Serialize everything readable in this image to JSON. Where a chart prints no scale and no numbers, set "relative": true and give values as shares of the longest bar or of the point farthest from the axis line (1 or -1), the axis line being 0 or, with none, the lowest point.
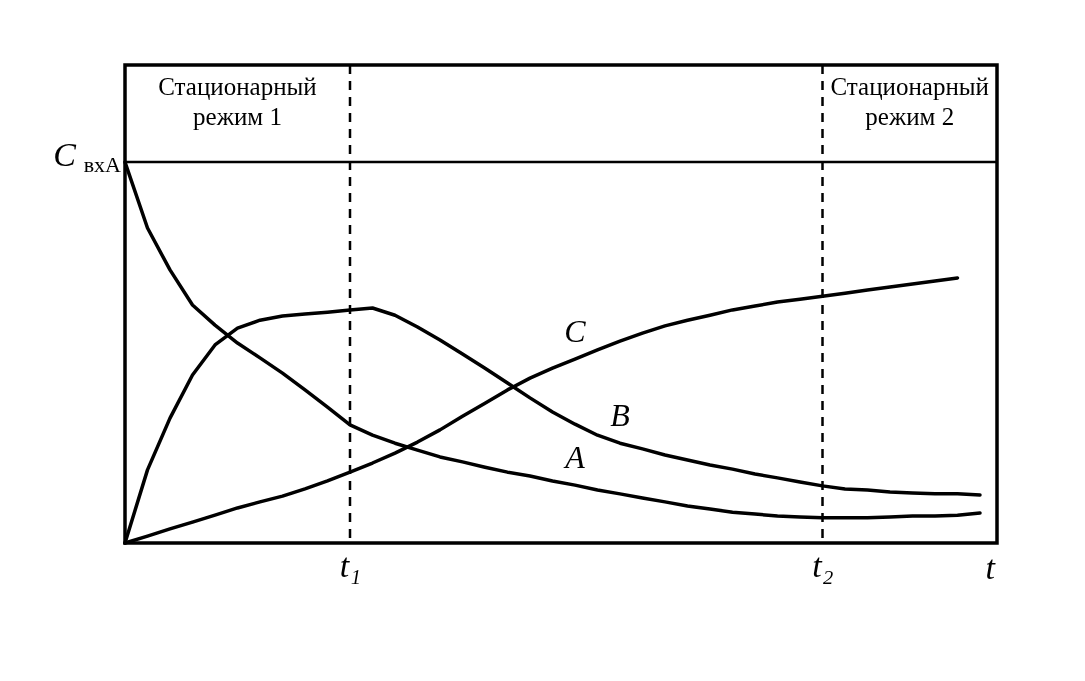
{
  "chart_data": {
    "type": "line",
    "relative": true,
    "xlabel": "t",
    "line_style": "solid",
    "categories": [
      null,
      null,
      null,
      null,
      null,
      null,
      null,
      null,
      null,
      null,
      "t₁",
      null,
      null,
      null,
      null,
      null,
      null,
      null,
      null,
      null,
      null,
      null,
      null,
      null,
      null,
      null,
      null,
      null,
      null,
      null,
      null,
      "t₂",
      null,
      null,
      null,
      null,
      null,
      null,
      null
    ],
    "series": [
      {
        "name": "A",
        "color": "#000000",
        "values": [
          1,
          0.827,
          0.717,
          0.625,
          0.572,
          0.525,
          0.486,
          0.446,
          0.402,
          0.357,
          0.31,
          0.283,
          0.262,
          0.244,
          0.226,
          0.213,
          0.199,
          0.186,
          0.176,
          0.163,
          0.152,
          0.139,
          0.129,
          0.118,
          0.108,
          0.097,
          0.089,
          0.081,
          0.076,
          0.071,
          0.068,
          0.066,
          0.066,
          0.066,
          0.068,
          0.071,
          0.071,
          0.073,
          0.079
        ]
      },
      {
        "name": "B",
        "color": "#000000",
        "values": [
          0,
          0.192,
          0.328,
          0.441,
          0.52,
          0.564,
          0.585,
          0.596,
          0.601,
          0.606,
          0.612,
          0.617,
          0.598,
          0.567,
          0.533,
          0.496,
          0.459,
          0.42,
          0.381,
          0.344,
          0.312,
          0.283,
          0.262,
          0.247,
          0.231,
          0.218,
          0.205,
          0.194,
          0.181,
          0.171,
          0.16,
          0.15,
          0.142,
          0.139,
          0.134,
          0.131,
          0.129,
          0.129,
          0.126
        ]
      },
      {
        "name": "C",
        "color": "#000000",
        "values": [
          0,
          0.018,
          0.037,
          0.055,
          0.073,
          0.092,
          0.108,
          0.123,
          0.142,
          0.163,
          0.186,
          0.21,
          0.236,
          0.265,
          0.297,
          0.333,
          0.367,
          0.402,
          0.433,
          0.459,
          0.483,
          0.507,
          0.53,
          0.551,
          0.57,
          0.585,
          0.598,
          0.612,
          0.622,
          0.633,
          0.64,
          0.648,
          0.656,
          0.664,
          0.672,
          0.68,
          0.688,
          0.696,
          null
        ]
      }
    ],
    "ref_lines": [
      {
        "axis": "y",
        "value": 1,
        "label": "C$_{вхA}$",
        "color": "#000000",
        "line_style": "solid"
      },
      {
        "axis": "x",
        "value": "t₁",
        "color": "#000000",
        "line_style": "dashed"
      },
      {
        "axis": "x",
        "value": "t₂",
        "color": "#000000",
        "line_style": "dashed"
      }
    ],
    "annotations": [
      "Стационарный режим 1",
      "Стационарный режим 2"
    ]
  }
}
